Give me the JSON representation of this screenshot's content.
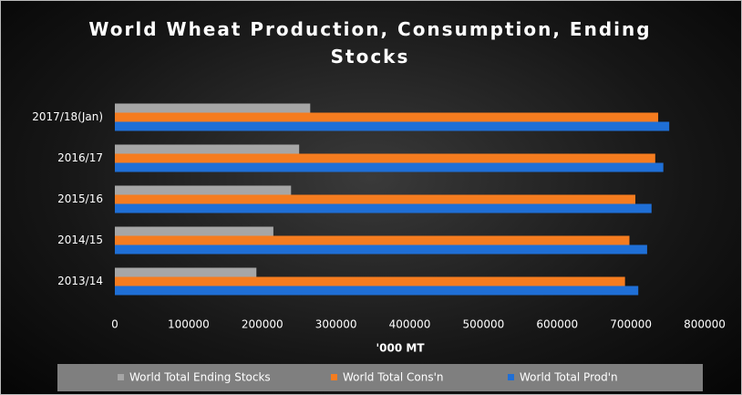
{
  "chart_data": {
    "type": "bar",
    "orientation": "horizontal",
    "title": "World Wheat Production, Consumption, Ending Stocks",
    "x_label": "'000 MT",
    "categories": [
      "2013/14",
      "2014/15",
      "2015/16",
      "2016/17",
      "2017/18(Jan)"
    ],
    "series": [
      {
        "name": "World Total Ending Stocks",
        "color": "#a6a6a6",
        "values": [
          192000,
          215000,
          239000,
          250000,
          265000
        ]
      },
      {
        "name": "World Total Cons'n",
        "color": "#f57c1f",
        "values": [
          692000,
          698000,
          706000,
          733000,
          737000
        ]
      },
      {
        "name": "World Total Prod'n",
        "color": "#1f6fd6",
        "values": [
          710000,
          722000,
          728000,
          744000,
          752000
        ]
      }
    ],
    "xlim": [
      0,
      800000
    ],
    "xticks": [
      0,
      100000,
      200000,
      300000,
      400000,
      500000,
      600000,
      700000,
      800000
    ],
    "legend": "bottom"
  }
}
